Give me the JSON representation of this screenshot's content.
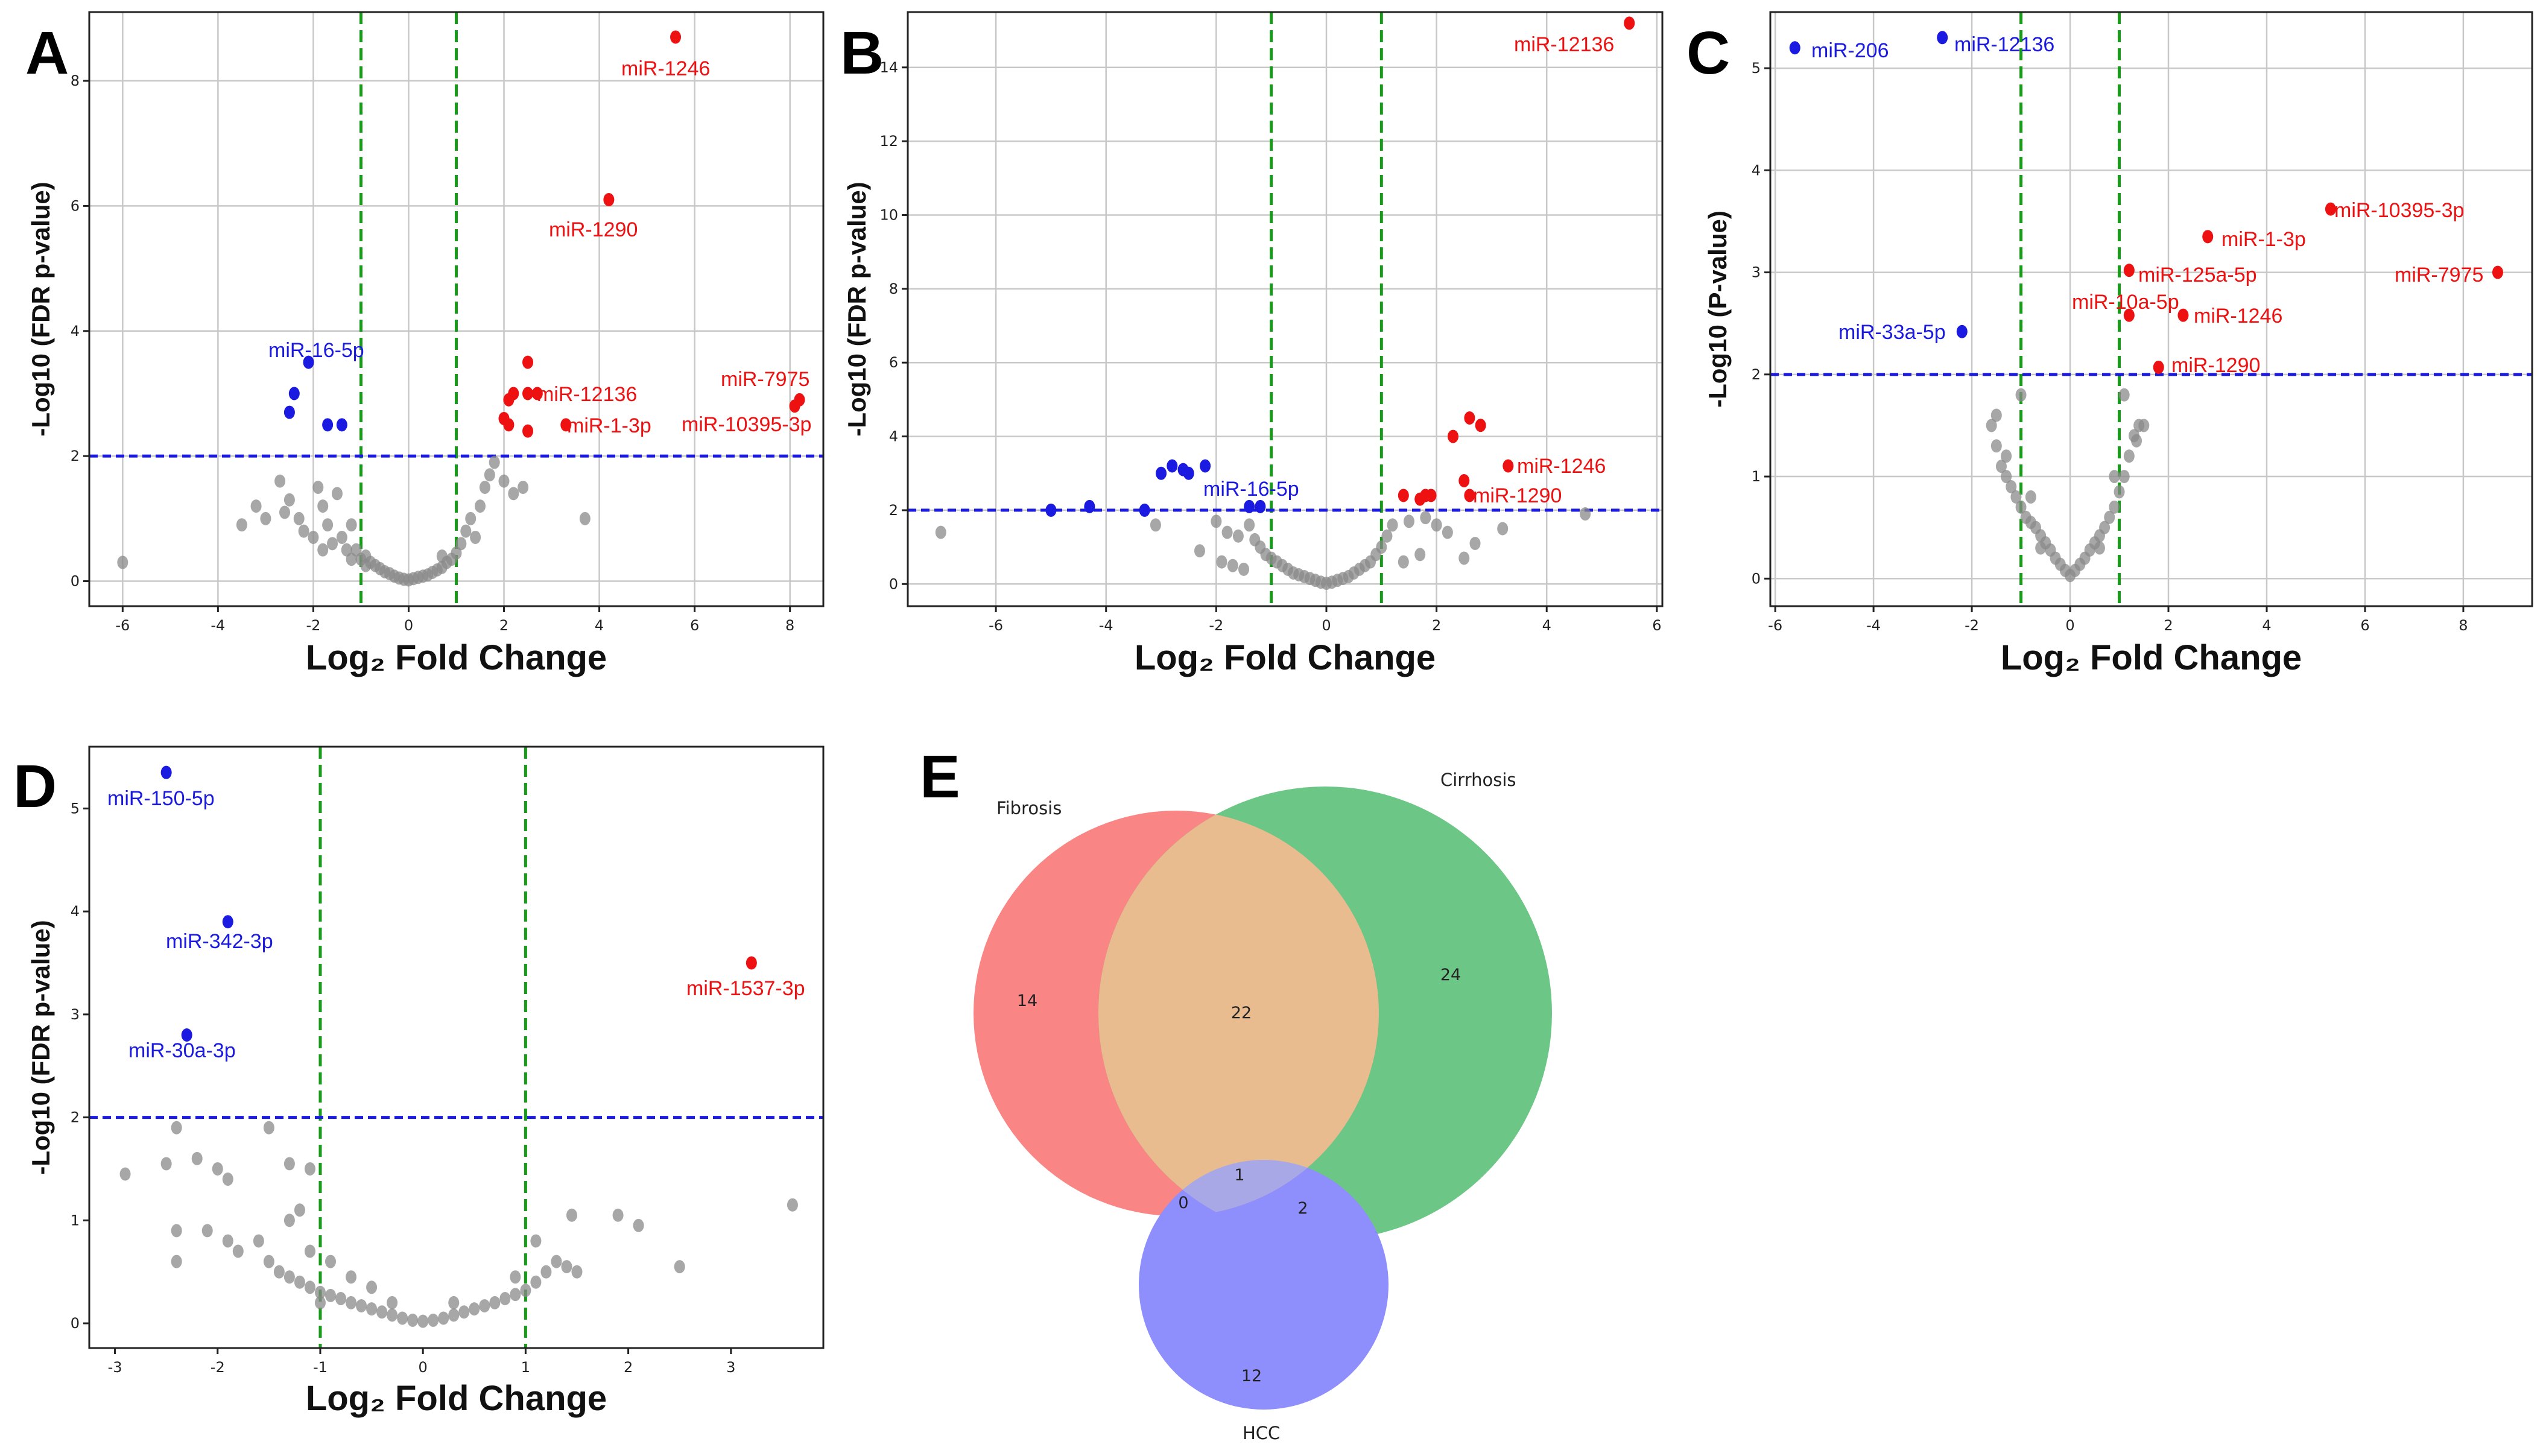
{
  "colors": {
    "up": "#ee1111",
    "down": "#1a1ae0",
    "ns": "#8a8a8a",
    "fc_line": "#1a9a1a",
    "p_line": "#1a1ae0",
    "fibrosis": "#f98585",
    "cirrhosis": "#6cc685",
    "hcc": "#8e8efc"
  },
  "panels": {
    "A": {
      "letter": "A"
    },
    "B": {
      "letter": "B"
    },
    "C": {
      "letter": "C"
    },
    "D": {
      "letter": "D"
    },
    "E": {
      "letter": "E"
    }
  },
  "chart_data": [
    {
      "id": "A",
      "type": "scatter",
      "title": "",
      "xlabel": "Log₂ Fold Change",
      "ylabel": "-Log10 (FDR p-value)",
      "xlim": [
        -6.7,
        8.7
      ],
      "ylim": [
        -0.4,
        9.1
      ],
      "xticks": [
        "-6",
        "-4",
        "-2",
        "0",
        "2",
        "4",
        "6",
        "8"
      ],
      "yticks": [
        "0",
        "2",
        "4",
        "6",
        "8"
      ],
      "fc_threshold": [
        -1,
        1
      ],
      "p_threshold": 2,
      "grid": true,
      "up": [
        {
          "x": 5.6,
          "y": 8.7,
          "label": "miR-1246"
        },
        {
          "x": 4.2,
          "y": 6.1,
          "label": "miR-1290"
        },
        {
          "x": 2.7,
          "y": 3.0,
          "label": "miR-12136"
        },
        {
          "x": 3.3,
          "y": 2.5,
          "label": "miR-1-3p"
        },
        {
          "x": 8.2,
          "y": 2.9,
          "label": "miR-7975"
        },
        {
          "x": 8.1,
          "y": 2.8,
          "label": "miR-10395-3p"
        },
        {
          "x": 2.5,
          "y": 3.5
        },
        {
          "x": 2.2,
          "y": 3.0
        },
        {
          "x": 2.1,
          "y": 2.9
        },
        {
          "x": 2.5,
          "y": 3.0
        },
        {
          "x": 2.0,
          "y": 2.6
        },
        {
          "x": 2.1,
          "y": 2.5
        },
        {
          "x": 2.5,
          "y": 2.4
        }
      ],
      "down": [
        {
          "x": -2.1,
          "y": 3.5,
          "label": "miR-16-5p"
        },
        {
          "x": -2.4,
          "y": 3.0
        },
        {
          "x": -2.5,
          "y": 2.7
        },
        {
          "x": -1.7,
          "y": 2.5
        },
        {
          "x": -1.4,
          "y": 2.5
        }
      ],
      "ns": [
        [
          -6.0,
          0.3
        ],
        [
          -3.5,
          0.9
        ],
        [
          -3.2,
          1.2
        ],
        [
          -3.0,
          1.0
        ],
        [
          -2.7,
          1.6
        ],
        [
          -2.5,
          1.3
        ],
        [
          -2.3,
          1.0
        ],
        [
          -2.2,
          0.8
        ],
        [
          -2.0,
          0.7
        ],
        [
          -1.9,
          1.5
        ],
        [
          -1.8,
          1.2
        ],
        [
          -1.7,
          0.9
        ],
        [
          -1.6,
          0.6
        ],
        [
          -1.5,
          1.4
        ],
        [
          -1.4,
          0.7
        ],
        [
          -1.3,
          0.5
        ],
        [
          -1.2,
          0.9
        ],
        [
          -1.1,
          0.5
        ],
        [
          -1.0,
          0.35
        ],
        [
          -0.9,
          0.4
        ],
        [
          -0.8,
          0.3
        ],
        [
          -0.7,
          0.25
        ],
        [
          -0.6,
          0.2
        ],
        [
          -0.5,
          0.15
        ],
        [
          -0.4,
          0.12
        ],
        [
          -0.3,
          0.08
        ],
        [
          -0.2,
          0.05
        ],
        [
          -0.1,
          0.03
        ],
        [
          0.0,
          0.02
        ],
        [
          0.1,
          0.04
        ],
        [
          0.2,
          0.06
        ],
        [
          0.3,
          0.08
        ],
        [
          0.4,
          0.1
        ],
        [
          0.5,
          0.14
        ],
        [
          0.6,
          0.18
        ],
        [
          0.7,
          0.22
        ],
        [
          0.8,
          0.3
        ],
        [
          0.9,
          0.35
        ],
        [
          1.0,
          0.45
        ],
        [
          1.1,
          0.6
        ],
        [
          1.2,
          0.8
        ],
        [
          1.3,
          1.0
        ],
        [
          1.5,
          1.2
        ],
        [
          1.6,
          1.5
        ],
        [
          1.7,
          1.7
        ],
        [
          1.8,
          1.9
        ],
        [
          2.0,
          1.6
        ],
        [
          2.2,
          1.4
        ],
        [
          2.4,
          1.5
        ],
        [
          3.7,
          1.0
        ],
        [
          -1.2,
          0.35
        ],
        [
          -0.9,
          0.25
        ],
        [
          0.7,
          0.4
        ],
        [
          1.4,
          0.7
        ],
        [
          -1.8,
          0.5
        ],
        [
          -2.6,
          1.1
        ]
      ]
    },
    {
      "id": "B",
      "type": "scatter",
      "title": "",
      "xlabel": "Log₂ Fold Change",
      "ylabel": "-Log10 (FDR p-value)",
      "xlim": [
        -7.6,
        6.1
      ],
      "ylim": [
        -0.6,
        15.5
      ],
      "xticks": [
        "-6",
        "-4",
        "-2",
        "0",
        "2",
        "4",
        "6"
      ],
      "yticks": [
        "0",
        "2",
        "4",
        "6",
        "8",
        "10",
        "12",
        "14"
      ],
      "fc_threshold": [
        -1,
        1
      ],
      "p_threshold": 2,
      "grid": true,
      "up": [
        {
          "x": 5.5,
          "y": 15.2,
          "label": "miR-12136"
        },
        {
          "x": 3.3,
          "y": 3.2,
          "label": "miR-1246"
        },
        {
          "x": 2.6,
          "y": 2.4,
          "label": "miR-1290"
        },
        {
          "x": 2.6,
          "y": 4.5
        },
        {
          "x": 2.8,
          "y": 4.3
        },
        {
          "x": 2.3,
          "y": 4.0
        },
        {
          "x": 2.5,
          "y": 2.8
        },
        {
          "x": 1.4,
          "y": 2.4
        },
        {
          "x": 1.8,
          "y": 2.4
        },
        {
          "x": 1.9,
          "y": 2.4
        },
        {
          "x": 1.7,
          "y": 2.3
        }
      ],
      "down": [
        {
          "x": -1.4,
          "y": 2.1,
          "label": "miR-16-5p"
        },
        {
          "x": -5.0,
          "y": 2.0
        },
        {
          "x": -4.3,
          "y": 2.1
        },
        {
          "x": -3.3,
          "y": 2.0
        },
        {
          "x": -2.8,
          "y": 3.2
        },
        {
          "x": -3.0,
          "y": 3.0
        },
        {
          "x": -2.6,
          "y": 3.1
        },
        {
          "x": -2.2,
          "y": 3.2
        },
        {
          "x": -2.5,
          "y": 3.0
        },
        {
          "x": -1.2,
          "y": 2.1
        }
      ],
      "ns": [
        [
          -7.0,
          1.4
        ],
        [
          -3.1,
          1.6
        ],
        [
          -2.0,
          1.7
        ],
        [
          -1.8,
          1.4
        ],
        [
          -1.6,
          1.3
        ],
        [
          -1.4,
          1.6
        ],
        [
          -1.3,
          1.2
        ],
        [
          -1.2,
          1.0
        ],
        [
          -1.1,
          0.8
        ],
        [
          -1.0,
          0.7
        ],
        [
          -0.9,
          0.6
        ],
        [
          -0.8,
          0.5
        ],
        [
          -0.7,
          0.4
        ],
        [
          -0.6,
          0.3
        ],
        [
          -0.5,
          0.25
        ],
        [
          -0.4,
          0.2
        ],
        [
          -0.3,
          0.15
        ],
        [
          -0.2,
          0.1
        ],
        [
          -0.1,
          0.05
        ],
        [
          0.0,
          0.02
        ],
        [
          0.1,
          0.05
        ],
        [
          0.2,
          0.1
        ],
        [
          0.3,
          0.15
        ],
        [
          0.4,
          0.2
        ],
        [
          0.5,
          0.3
        ],
        [
          0.6,
          0.4
        ],
        [
          0.7,
          0.5
        ],
        [
          0.8,
          0.6
        ],
        [
          0.9,
          0.8
        ],
        [
          1.0,
          1.0
        ],
        [
          1.1,
          1.3
        ],
        [
          1.2,
          1.6
        ],
        [
          1.5,
          1.7
        ],
        [
          1.8,
          1.8
        ],
        [
          2.0,
          1.6
        ],
        [
          2.2,
          1.4
        ],
        [
          2.5,
          0.7
        ],
        [
          2.7,
          1.1
        ],
        [
          3.2,
          1.5
        ],
        [
          4.7,
          1.9
        ],
        [
          -1.7,
          0.5
        ],
        [
          -1.5,
          0.4
        ],
        [
          -1.9,
          0.6
        ],
        [
          1.4,
          0.6
        ],
        [
          1.7,
          0.8
        ],
        [
          -2.3,
          0.9
        ]
      ]
    },
    {
      "id": "C",
      "type": "scatter",
      "title": "",
      "xlabel": "Log₂ Fold Change",
      "ylabel": "-Log10 (P-value)",
      "xlim": [
        -6.1,
        9.4
      ],
      "ylim": [
        -0.27,
        5.55
      ],
      "xticks": [
        "-6",
        "-4",
        "-2",
        "0",
        "2",
        "4",
        "6",
        "8"
      ],
      "yticks": [
        "0",
        "1",
        "2",
        "3",
        "4",
        "5"
      ],
      "fc_threshold": [
        -1,
        1
      ],
      "p_threshold": 2,
      "grid": true,
      "up": [
        {
          "x": 5.3,
          "y": 3.62,
          "label": "miR-10395-3p"
        },
        {
          "x": 2.8,
          "y": 3.35,
          "label": "miR-1-3p"
        },
        {
          "x": 8.7,
          "y": 3.0,
          "label": "miR-7975"
        },
        {
          "x": 1.2,
          "y": 3.02,
          "label": "miR-125a-5p"
        },
        {
          "x": 1.2,
          "y": 2.58,
          "label": "miR-10a-5p"
        },
        {
          "x": 2.3,
          "y": 2.58,
          "label": "miR-1246"
        },
        {
          "x": 1.8,
          "y": 2.07,
          "label": "miR-1290"
        }
      ],
      "down": [
        {
          "x": -5.6,
          "y": 5.2,
          "label": "miR-206"
        },
        {
          "x": -2.6,
          "y": 5.3,
          "label": "miR-12136"
        },
        {
          "x": -2.2,
          "y": 2.42,
          "label": "miR-33a-5p"
        }
      ],
      "ns": [
        [
          -1.6,
          1.5
        ],
        [
          -1.5,
          1.3
        ],
        [
          -1.4,
          1.1
        ],
        [
          -1.3,
          1.0
        ],
        [
          -1.2,
          0.9
        ],
        [
          -1.1,
          0.8
        ],
        [
          -1.0,
          0.7
        ],
        [
          -0.9,
          0.6
        ],
        [
          -0.8,
          0.55
        ],
        [
          -0.7,
          0.5
        ],
        [
          -0.6,
          0.42
        ],
        [
          -0.5,
          0.35
        ],
        [
          -0.4,
          0.28
        ],
        [
          -0.3,
          0.2
        ],
        [
          -0.2,
          0.14
        ],
        [
          -0.1,
          0.08
        ],
        [
          0.0,
          0.03
        ],
        [
          0.1,
          0.08
        ],
        [
          0.2,
          0.14
        ],
        [
          0.3,
          0.2
        ],
        [
          0.4,
          0.28
        ],
        [
          0.5,
          0.35
        ],
        [
          0.6,
          0.42
        ],
        [
          0.7,
          0.5
        ],
        [
          0.8,
          0.6
        ],
        [
          0.9,
          0.7
        ],
        [
          1.0,
          0.85
        ],
        [
          1.1,
          1.0
        ],
        [
          1.2,
          1.2
        ],
        [
          1.3,
          1.4
        ],
        [
          1.4,
          1.5
        ],
        [
          1.5,
          1.5
        ],
        [
          -1.0,
          1.8
        ],
        [
          -1.3,
          1.2
        ],
        [
          -0.8,
          0.8
        ],
        [
          1.1,
          1.8
        ],
        [
          0.9,
          1.0
        ],
        [
          -0.6,
          0.3
        ],
        [
          0.6,
          0.3
        ],
        [
          -1.5,
          1.6
        ],
        [
          1.35,
          1.35
        ]
      ]
    },
    {
      "id": "D",
      "type": "scatter",
      "title": "",
      "xlabel": "Log₂ Fold Change",
      "ylabel": "-Log10 (FDR p-value)",
      "xlim": [
        -3.25,
        3.9
      ],
      "ylim": [
        -0.24,
        5.6
      ],
      "xticks": [
        "-3",
        "-2",
        "-1",
        "0",
        "1",
        "2",
        "3"
      ],
      "yticks": [
        "0",
        "1",
        "2",
        "3",
        "4",
        "5"
      ],
      "fc_threshold": [
        -1,
        1
      ],
      "p_threshold": 2,
      "grid": false,
      "up": [
        {
          "x": 3.2,
          "y": 3.5,
          "label": "miR-1537-3p"
        }
      ],
      "down": [
        {
          "x": -2.5,
          "y": 5.35,
          "label": "miR-150-5p"
        },
        {
          "x": -1.9,
          "y": 3.9,
          "label": "miR-342-3p"
        },
        {
          "x": -2.3,
          "y": 2.8,
          "label": "miR-30a-3p"
        }
      ],
      "ns": [
        [
          -2.9,
          1.45
        ],
        [
          -2.5,
          1.55
        ],
        [
          -2.4,
          1.9
        ],
        [
          -2.2,
          1.6
        ],
        [
          -2.0,
          1.5
        ],
        [
          -1.9,
          1.4
        ],
        [
          -1.5,
          1.9
        ],
        [
          -1.3,
          1.55
        ],
        [
          -1.2,
          1.1
        ],
        [
          -1.3,
          1.0
        ],
        [
          -1.1,
          1.5
        ],
        [
          -2.4,
          0.9
        ],
        [
          -2.4,
          0.6
        ],
        [
          -2.1,
          0.9
        ],
        [
          -1.9,
          0.8
        ],
        [
          -1.8,
          0.7
        ],
        [
          -1.6,
          0.8
        ],
        [
          -1.5,
          0.6
        ],
        [
          -1.4,
          0.5
        ],
        [
          -1.3,
          0.45
        ],
        [
          -1.2,
          0.4
        ],
        [
          -1.1,
          0.35
        ],
        [
          -1.0,
          0.3
        ],
        [
          -0.9,
          0.27
        ],
        [
          -0.8,
          0.24
        ],
        [
          -0.7,
          0.2
        ],
        [
          -0.6,
          0.17
        ],
        [
          -0.5,
          0.14
        ],
        [
          -0.4,
          0.11
        ],
        [
          -0.3,
          0.08
        ],
        [
          -0.2,
          0.05
        ],
        [
          -0.1,
          0.03
        ],
        [
          0.0,
          0.02
        ],
        [
          0.1,
          0.03
        ],
        [
          0.2,
          0.05
        ],
        [
          0.3,
          0.08
        ],
        [
          0.4,
          0.11
        ],
        [
          0.5,
          0.14
        ],
        [
          0.6,
          0.17
        ],
        [
          0.7,
          0.2
        ],
        [
          0.8,
          0.24
        ],
        [
          0.9,
          0.28
        ],
        [
          1.0,
          0.32
        ],
        [
          1.1,
          0.4
        ],
        [
          1.2,
          0.5
        ],
        [
          1.3,
          0.6
        ],
        [
          1.4,
          0.55
        ],
        [
          1.5,
          0.5
        ],
        [
          1.45,
          1.05
        ],
        [
          1.9,
          1.05
        ],
        [
          2.1,
          0.95
        ],
        [
          2.5,
          0.55
        ],
        [
          3.6,
          1.15
        ],
        [
          -0.9,
          0.6
        ],
        [
          -0.7,
          0.45
        ],
        [
          -0.5,
          0.35
        ],
        [
          -1.1,
          0.7
        ],
        [
          -1.0,
          0.2
        ],
        [
          0.9,
          0.45
        ],
        [
          1.1,
          0.8
        ],
        [
          -0.3,
          0.2
        ],
        [
          0.3,
          0.2
        ]
      ]
    },
    {
      "id": "E",
      "type": "venn",
      "sets": [
        "Fibrosis",
        "Cirrhosis",
        "HCC"
      ],
      "regions": {
        "Fibrosis": "14",
        "Cirrhosis": "24",
        "HCC": "12",
        "Fibrosis&Cirrhosis": "22",
        "Fibrosis&Cirrhosis&HCC": "1",
        "Fibrosis&HCC": "0",
        "Cirrhosis&HCC": "2"
      }
    }
  ]
}
